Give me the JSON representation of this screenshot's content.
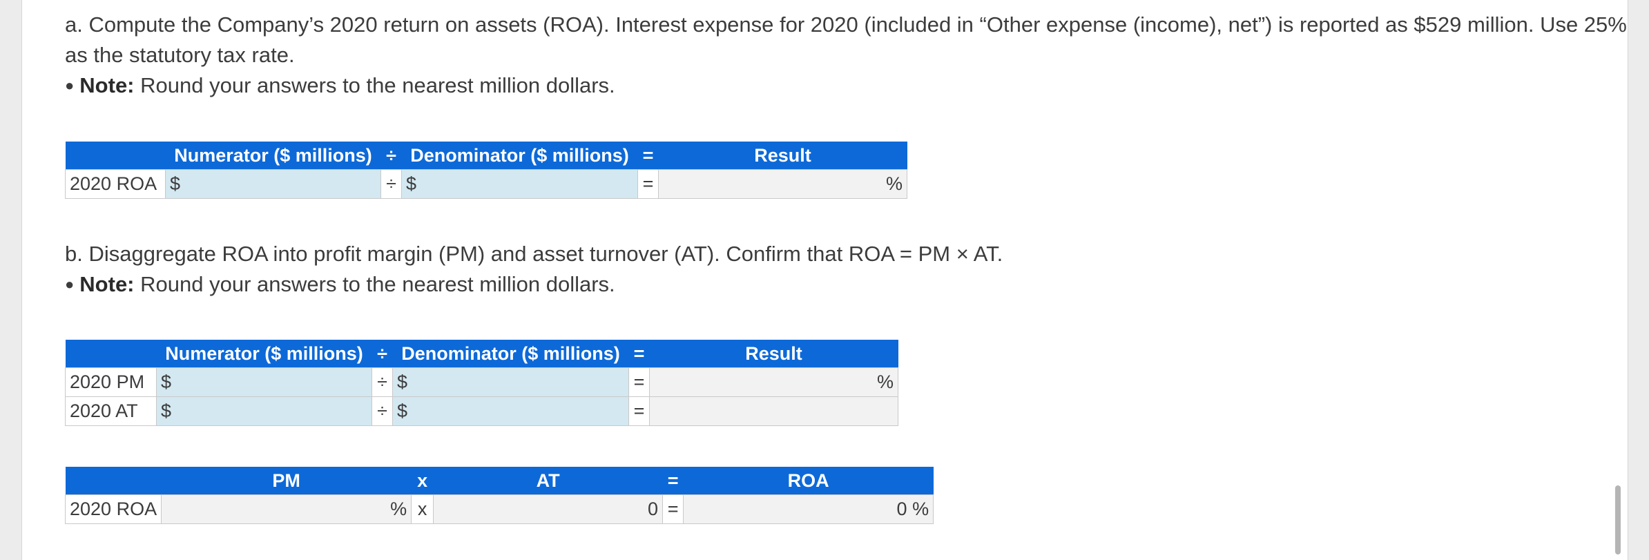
{
  "part_a": {
    "text": "a. Compute the Company’s 2020 return on assets (ROA). Interest expense for 2020 (included in “Other expense (income), net”) is reported as $529 million. Use 25% as the statutory tax rate.",
    "note_label": "Note:",
    "note_text": "Round your answers to the nearest million dollars.",
    "table": {
      "headers": {
        "numerator": "Numerator ($ millions)",
        "div": "÷",
        "denominator": "Denominator ($ millions)",
        "eq": "=",
        "result": "Result"
      },
      "rows": [
        {
          "label": "2020 ROA",
          "num_prefix": "$",
          "div": "÷",
          "den_prefix": "$",
          "eq": "=",
          "result_unit": "%"
        }
      ]
    }
  },
  "part_b": {
    "text": "b. Disaggregate ROA into profit margin (PM) and asset turnover (AT). Confirm that ROA = PM × AT.",
    "note_label": "Note:",
    "note_text": "Round your answers to the nearest million dollars.",
    "table": {
      "headers": {
        "numerator": "Numerator ($ millions)",
        "div": "÷",
        "denominator": "Denominator ($ millions)",
        "eq": "=",
        "result": "Result"
      },
      "rows": [
        {
          "label": "2020 PM",
          "num_prefix": "$",
          "div": "÷",
          "den_prefix": "$",
          "eq": "=",
          "result_unit": "%"
        },
        {
          "label": "2020 AT",
          "num_prefix": "$",
          "div": "÷",
          "den_prefix": "$",
          "eq": "=",
          "result_unit": ""
        }
      ]
    },
    "confirm_table": {
      "headers": {
        "pm": "PM",
        "x": "x",
        "at": "AT",
        "eq": "=",
        "roa": "ROA"
      },
      "row": {
        "label": "2020 ROA",
        "pm_unit": "%",
        "x": "x",
        "at_value": "0",
        "eq": "=",
        "roa_value": "0",
        "roa_unit": "%"
      }
    }
  }
}
